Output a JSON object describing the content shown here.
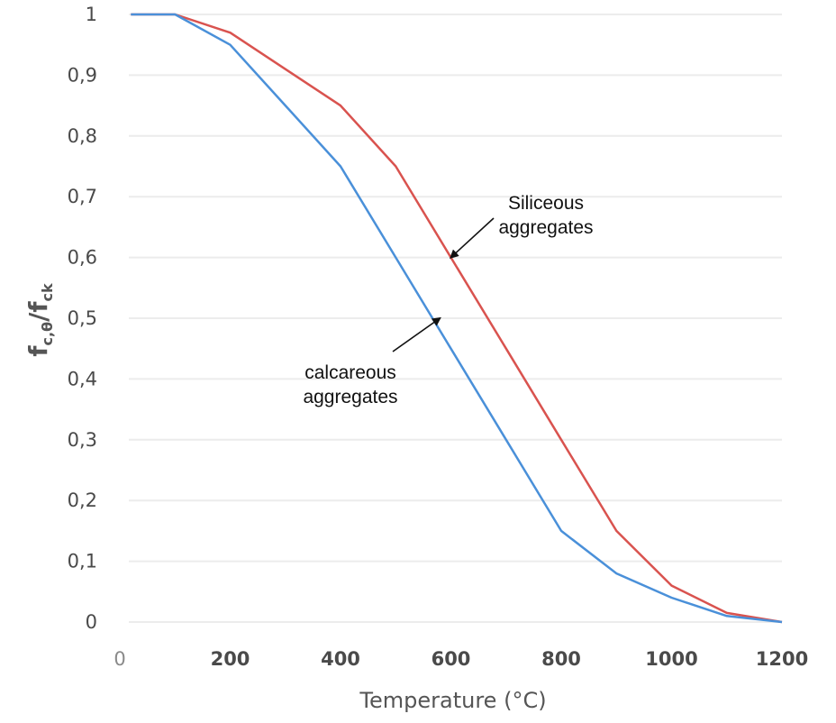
{
  "chart_data": {
    "type": "line",
    "title": "",
    "xlabel": "Temperature (°C)",
    "ylabel": {
      "main": "f",
      "sub1": "c,θ",
      "sep": "/",
      "main2": "f",
      "sub2": "ck"
    },
    "xlim": [
      0,
      1200
    ],
    "ylim": [
      0,
      1
    ],
    "x_ticks": [
      0,
      200,
      400,
      600,
      800,
      1000,
      1200
    ],
    "x_tick_labels": [
      "0",
      "200",
      "400",
      "600",
      "800",
      "1000",
      "1200"
    ],
    "y_ticks": [
      0,
      0.1,
      0.2,
      0.3,
      0.4,
      0.5,
      0.6,
      0.7,
      0.8,
      0.9,
      1
    ],
    "y_tick_labels": [
      "0",
      "0,1",
      "0,2",
      "0,3",
      "0,4",
      "0,5",
      "0,6",
      "0,7",
      "0,8",
      "0,9",
      "1"
    ],
    "grid": true,
    "series": [
      {
        "name": "Siliceous aggregates",
        "color": "#d9534f",
        "x": [
          20,
          100,
          200,
          300,
          400,
          500,
          600,
          700,
          800,
          900,
          1000,
          1100,
          1200
        ],
        "y": [
          1.0,
          1.0,
          0.97,
          0.91,
          0.85,
          0.75,
          0.6,
          0.45,
          0.3,
          0.15,
          0.06,
          0.015,
          0.0
        ]
      },
      {
        "name": "calcareous aggregates",
        "color": "#4a90d9",
        "x": [
          20,
          100,
          200,
          300,
          400,
          500,
          600,
          700,
          800,
          900,
          1000,
          1100,
          1200
        ],
        "y": [
          1.0,
          1.0,
          0.95,
          0.85,
          0.75,
          0.6,
          0.45,
          0.3,
          0.15,
          0.08,
          0.04,
          0.01,
          0.0
        ]
      }
    ],
    "annotations": [
      {
        "lines": [
          "Siliceous",
          "aggregates"
        ],
        "arrow_to": {
          "x": 600,
          "y": 0.6
        },
        "series": "Siliceous aggregates"
      },
      {
        "lines": [
          "calcareous",
          "aggregates"
        ],
        "arrow_to": {
          "x": 580,
          "y": 0.5
        },
        "series": "calcareous aggregates"
      }
    ]
  }
}
